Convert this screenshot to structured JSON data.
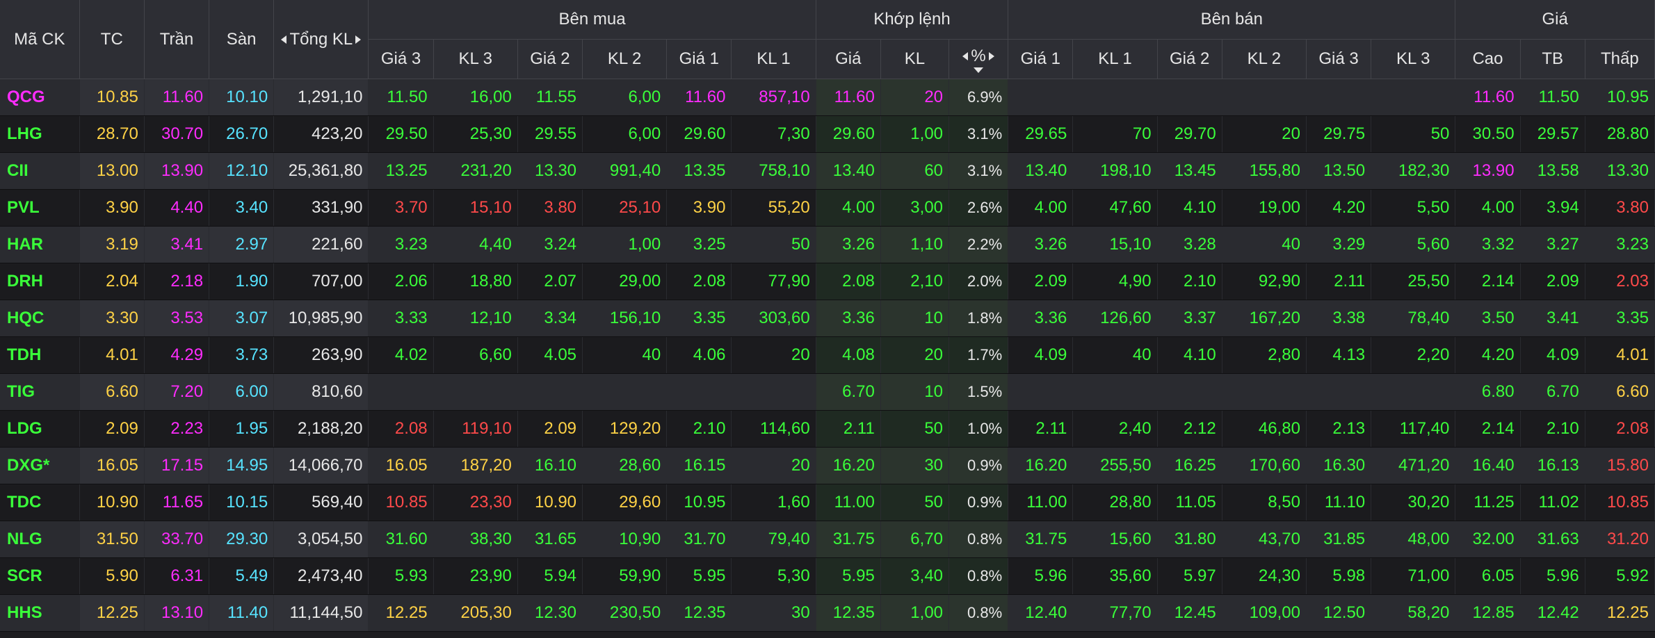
{
  "headers": {
    "symbol": "Mã CK",
    "ref": "TC",
    "ceiling": "Trần",
    "floor": "Sàn",
    "total_volume": "Tổng KL",
    "buy_group": "Bên mua",
    "match_group": "Khớp lệnh",
    "sell_group": "Bên bán",
    "price_group": "Giá",
    "buy_cols": [
      "Giá 3",
      "KL 3",
      "Giá 2",
      "KL 2",
      "Giá 1",
      "KL 1"
    ],
    "match_cols": [
      "Giá",
      "KL",
      "%"
    ],
    "sell_cols": [
      "Giá 1",
      "KL 1",
      "Giá 2",
      "KL 2",
      "Giá 3",
      "KL 3"
    ],
    "price_cols": [
      "Cao",
      "TB",
      "Thấp"
    ]
  },
  "colors": {
    "up": "#3aff3a",
    "ref": "#ffd246",
    "down": "#ff4a4a",
    "ceiling": "#ff2cff",
    "floor": "#57e3ff",
    "neutral": "#e8e8e8"
  },
  "rows": [
    {
      "sym": "QCG",
      "sc": "c",
      "tc": "10.85",
      "ceil": "11.60",
      "floor": "10.10",
      "vol": "1,291,10",
      "buy": [
        [
          "11.50",
          "g"
        ],
        [
          "16,00",
          "g"
        ],
        [
          "11.55",
          "g"
        ],
        [
          "6,00",
          "g"
        ],
        [
          "11.60",
          "c"
        ],
        [
          "857,10",
          "c"
        ]
      ],
      "match": [
        [
          "11.60",
          "c"
        ],
        [
          "20",
          "c"
        ]
      ],
      "pct": "6.9%",
      "sell": [
        [
          "",
          ""
        ],
        [
          "",
          ""
        ],
        [
          "",
          ""
        ],
        [
          "",
          ""
        ],
        [
          "",
          ""
        ],
        [
          "",
          ""
        ]
      ],
      "hl": [
        [
          "11.60",
          "c"
        ],
        [
          "11.50",
          "g"
        ],
        [
          "10.95",
          "g"
        ]
      ]
    },
    {
      "sym": "LHG",
      "sc": "g",
      "tc": "28.70",
      "ceil": "30.70",
      "floor": "26.70",
      "vol": "423,20",
      "buy": [
        [
          "29.50",
          "g"
        ],
        [
          "25,30",
          "g"
        ],
        [
          "29.55",
          "g"
        ],
        [
          "6,00",
          "g"
        ],
        [
          "29.60",
          "g"
        ],
        [
          "7,30",
          "g"
        ]
      ],
      "match": [
        [
          "29.60",
          "g"
        ],
        [
          "1,00",
          "g"
        ]
      ],
      "pct": "3.1%",
      "sell": [
        [
          "29.65",
          "g"
        ],
        [
          "70",
          "g"
        ],
        [
          "29.70",
          "g"
        ],
        [
          "20",
          "g"
        ],
        [
          "29.75",
          "g"
        ],
        [
          "50",
          "g"
        ]
      ],
      "hl": [
        [
          "30.50",
          "g"
        ],
        [
          "29.57",
          "g"
        ],
        [
          "28.80",
          "g"
        ]
      ]
    },
    {
      "sym": "CII",
      "sc": "g",
      "tc": "13.00",
      "ceil": "13.90",
      "floor": "12.10",
      "vol": "25,361,80",
      "buy": [
        [
          "13.25",
          "g"
        ],
        [
          "231,20",
          "g"
        ],
        [
          "13.30",
          "g"
        ],
        [
          "991,40",
          "g"
        ],
        [
          "13.35",
          "g"
        ],
        [
          "758,10",
          "g"
        ]
      ],
      "match": [
        [
          "13.40",
          "g"
        ],
        [
          "60",
          "g"
        ]
      ],
      "pct": "3.1%",
      "sell": [
        [
          "13.40",
          "g"
        ],
        [
          "198,10",
          "g"
        ],
        [
          "13.45",
          "g"
        ],
        [
          "155,80",
          "g"
        ],
        [
          "13.50",
          "g"
        ],
        [
          "182,30",
          "g"
        ]
      ],
      "hl": [
        [
          "13.90",
          "c"
        ],
        [
          "13.58",
          "g"
        ],
        [
          "13.30",
          "g"
        ]
      ]
    },
    {
      "sym": "PVL",
      "sc": "g",
      "tc": "3.90",
      "ceil": "4.40",
      "floor": "3.40",
      "vol": "331,90",
      "buy": [
        [
          "3.70",
          "r"
        ],
        [
          "15,10",
          "r"
        ],
        [
          "3.80",
          "r"
        ],
        [
          "25,10",
          "r"
        ],
        [
          "3.90",
          "y"
        ],
        [
          "55,20",
          "y"
        ]
      ],
      "match": [
        [
          "4.00",
          "g"
        ],
        [
          "3,00",
          "g"
        ]
      ],
      "pct": "2.6%",
      "sell": [
        [
          "4.00",
          "g"
        ],
        [
          "47,60",
          "g"
        ],
        [
          "4.10",
          "g"
        ],
        [
          "19,00",
          "g"
        ],
        [
          "4.20",
          "g"
        ],
        [
          "5,50",
          "g"
        ]
      ],
      "hl": [
        [
          "4.00",
          "g"
        ],
        [
          "3.94",
          "g"
        ],
        [
          "3.80",
          "r"
        ]
      ]
    },
    {
      "sym": "HAR",
      "sc": "g",
      "tc": "3.19",
      "ceil": "3.41",
      "floor": "2.97",
      "vol": "221,60",
      "buy": [
        [
          "3.23",
          "g"
        ],
        [
          "4,40",
          "g"
        ],
        [
          "3.24",
          "g"
        ],
        [
          "1,00",
          "g"
        ],
        [
          "3.25",
          "g"
        ],
        [
          "50",
          "g"
        ]
      ],
      "match": [
        [
          "3.26",
          "g"
        ],
        [
          "1,10",
          "g"
        ]
      ],
      "pct": "2.2%",
      "sell": [
        [
          "3.26",
          "g"
        ],
        [
          "15,10",
          "g"
        ],
        [
          "3.28",
          "g"
        ],
        [
          "40",
          "g"
        ],
        [
          "3.29",
          "g"
        ],
        [
          "5,60",
          "g"
        ]
      ],
      "hl": [
        [
          "3.32",
          "g"
        ],
        [
          "3.27",
          "g"
        ],
        [
          "3.23",
          "g"
        ]
      ]
    },
    {
      "sym": "DRH",
      "sc": "g",
      "tc": "2.04",
      "ceil": "2.18",
      "floor": "1.90",
      "vol": "707,00",
      "buy": [
        [
          "2.06",
          "g"
        ],
        [
          "18,80",
          "g"
        ],
        [
          "2.07",
          "g"
        ],
        [
          "29,00",
          "g"
        ],
        [
          "2.08",
          "g"
        ],
        [
          "77,90",
          "g"
        ]
      ],
      "match": [
        [
          "2.08",
          "g"
        ],
        [
          "2,10",
          "g"
        ]
      ],
      "pct": "2.0%",
      "sell": [
        [
          "2.09",
          "g"
        ],
        [
          "4,90",
          "g"
        ],
        [
          "2.10",
          "g"
        ],
        [
          "92,90",
          "g"
        ],
        [
          "2.11",
          "g"
        ],
        [
          "25,50",
          "g"
        ]
      ],
      "hl": [
        [
          "2.14",
          "g"
        ],
        [
          "2.09",
          "g"
        ],
        [
          "2.03",
          "r"
        ]
      ]
    },
    {
      "sym": "HQC",
      "sc": "g",
      "tc": "3.30",
      "ceil": "3.53",
      "floor": "3.07",
      "vol": "10,985,90",
      "buy": [
        [
          "3.33",
          "g"
        ],
        [
          "12,10",
          "g"
        ],
        [
          "3.34",
          "g"
        ],
        [
          "156,10",
          "g"
        ],
        [
          "3.35",
          "g"
        ],
        [
          "303,60",
          "g"
        ]
      ],
      "match": [
        [
          "3.36",
          "g"
        ],
        [
          "10",
          "g"
        ]
      ],
      "pct": "1.8%",
      "sell": [
        [
          "3.36",
          "g"
        ],
        [
          "126,60",
          "g"
        ],
        [
          "3.37",
          "g"
        ],
        [
          "167,20",
          "g"
        ],
        [
          "3.38",
          "g"
        ],
        [
          "78,40",
          "g"
        ]
      ],
      "hl": [
        [
          "3.50",
          "g"
        ],
        [
          "3.41",
          "g"
        ],
        [
          "3.35",
          "g"
        ]
      ]
    },
    {
      "sym": "TDH",
      "sc": "g",
      "tc": "4.01",
      "ceil": "4.29",
      "floor": "3.73",
      "vol": "263,90",
      "buy": [
        [
          "4.02",
          "g"
        ],
        [
          "6,60",
          "g"
        ],
        [
          "4.05",
          "g"
        ],
        [
          "40",
          "g"
        ],
        [
          "4.06",
          "g"
        ],
        [
          "20",
          "g"
        ]
      ],
      "match": [
        [
          "4.08",
          "g"
        ],
        [
          "20",
          "g"
        ]
      ],
      "pct": "1.7%",
      "sell": [
        [
          "4.09",
          "g"
        ],
        [
          "40",
          "g"
        ],
        [
          "4.10",
          "g"
        ],
        [
          "2,80",
          "g"
        ],
        [
          "4.13",
          "g"
        ],
        [
          "2,20",
          "g"
        ]
      ],
      "hl": [
        [
          "4.20",
          "g"
        ],
        [
          "4.09",
          "g"
        ],
        [
          "4.01",
          "y"
        ]
      ]
    },
    {
      "sym": "TIG",
      "sc": "g",
      "tc": "6.60",
      "ceil": "7.20",
      "floor": "6.00",
      "vol": "810,60",
      "buy": [
        [
          "",
          ""
        ],
        [
          "",
          ""
        ],
        [
          "",
          ""
        ],
        [
          "",
          ""
        ],
        [
          "",
          ""
        ],
        [
          "",
          ""
        ]
      ],
      "match": [
        [
          "6.70",
          "g"
        ],
        [
          "10",
          "g"
        ]
      ],
      "pct": "1.5%",
      "sell": [
        [
          "",
          ""
        ],
        [
          "",
          ""
        ],
        [
          "",
          ""
        ],
        [
          "",
          ""
        ],
        [
          "",
          ""
        ],
        [
          "",
          ""
        ]
      ],
      "hl": [
        [
          "6.80",
          "g"
        ],
        [
          "6.70",
          "g"
        ],
        [
          "6.60",
          "y"
        ]
      ]
    },
    {
      "sym": "LDG",
      "sc": "g",
      "tc": "2.09",
      "ceil": "2.23",
      "floor": "1.95",
      "vol": "2,188,20",
      "buy": [
        [
          "2.08",
          "r"
        ],
        [
          "119,10",
          "r"
        ],
        [
          "2.09",
          "y"
        ],
        [
          "129,20",
          "y"
        ],
        [
          "2.10",
          "g"
        ],
        [
          "114,60",
          "g"
        ]
      ],
      "match": [
        [
          "2.11",
          "g"
        ],
        [
          "50",
          "g"
        ]
      ],
      "pct": "1.0%",
      "sell": [
        [
          "2.11",
          "g"
        ],
        [
          "2,40",
          "g"
        ],
        [
          "2.12",
          "g"
        ],
        [
          "46,80",
          "g"
        ],
        [
          "2.13",
          "g"
        ],
        [
          "117,40",
          "g"
        ]
      ],
      "hl": [
        [
          "2.14",
          "g"
        ],
        [
          "2.10",
          "g"
        ],
        [
          "2.08",
          "r"
        ]
      ]
    },
    {
      "sym": "DXG*",
      "sc": "g",
      "tc": "16.05",
      "ceil": "17.15",
      "floor": "14.95",
      "vol": "14,066,70",
      "buy": [
        [
          "16.05",
          "y"
        ],
        [
          "187,20",
          "y"
        ],
        [
          "16.10",
          "g"
        ],
        [
          "28,60",
          "g"
        ],
        [
          "16.15",
          "g"
        ],
        [
          "20",
          "g"
        ]
      ],
      "match": [
        [
          "16.20",
          "g"
        ],
        [
          "30",
          "g"
        ]
      ],
      "pct": "0.9%",
      "sell": [
        [
          "16.20",
          "g"
        ],
        [
          "255,50",
          "g"
        ],
        [
          "16.25",
          "g"
        ],
        [
          "170,60",
          "g"
        ],
        [
          "16.30",
          "g"
        ],
        [
          "471,20",
          "g"
        ]
      ],
      "hl": [
        [
          "16.40",
          "g"
        ],
        [
          "16.13",
          "g"
        ],
        [
          "15.80",
          "r"
        ]
      ]
    },
    {
      "sym": "TDC",
      "sc": "g",
      "tc": "10.90",
      "ceil": "11.65",
      "floor": "10.15",
      "vol": "569,40",
      "buy": [
        [
          "10.85",
          "r"
        ],
        [
          "23,30",
          "r"
        ],
        [
          "10.90",
          "y"
        ],
        [
          "29,60",
          "y"
        ],
        [
          "10.95",
          "g"
        ],
        [
          "1,60",
          "g"
        ]
      ],
      "match": [
        [
          "11.00",
          "g"
        ],
        [
          "50",
          "g"
        ]
      ],
      "pct": "0.9%",
      "sell": [
        [
          "11.00",
          "g"
        ],
        [
          "28,80",
          "g"
        ],
        [
          "11.05",
          "g"
        ],
        [
          "8,50",
          "g"
        ],
        [
          "11.10",
          "g"
        ],
        [
          "30,20",
          "g"
        ]
      ],
      "hl": [
        [
          "11.25",
          "g"
        ],
        [
          "11.02",
          "g"
        ],
        [
          "10.85",
          "r"
        ]
      ]
    },
    {
      "sym": "NLG",
      "sc": "g",
      "tc": "31.50",
      "ceil": "33.70",
      "floor": "29.30",
      "vol": "3,054,50",
      "buy": [
        [
          "31.60",
          "g"
        ],
        [
          "38,30",
          "g"
        ],
        [
          "31.65",
          "g"
        ],
        [
          "10,90",
          "g"
        ],
        [
          "31.70",
          "g"
        ],
        [
          "79,40",
          "g"
        ]
      ],
      "match": [
        [
          "31.75",
          "g"
        ],
        [
          "6,70",
          "g"
        ]
      ],
      "pct": "0.8%",
      "sell": [
        [
          "31.75",
          "g"
        ],
        [
          "15,60",
          "g"
        ],
        [
          "31.80",
          "g"
        ],
        [
          "43,70",
          "g"
        ],
        [
          "31.85",
          "g"
        ],
        [
          "48,00",
          "g"
        ]
      ],
      "hl": [
        [
          "32.00",
          "g"
        ],
        [
          "31.63",
          "g"
        ],
        [
          "31.20",
          "r"
        ]
      ]
    },
    {
      "sym": "SCR",
      "sc": "g",
      "tc": "5.90",
      "ceil": "6.31",
      "floor": "5.49",
      "vol": "2,473,40",
      "buy": [
        [
          "5.93",
          "g"
        ],
        [
          "23,90",
          "g"
        ],
        [
          "5.94",
          "g"
        ],
        [
          "59,90",
          "g"
        ],
        [
          "5.95",
          "g"
        ],
        [
          "5,30",
          "g"
        ]
      ],
      "match": [
        [
          "5.95",
          "g"
        ],
        [
          "3,40",
          "g"
        ]
      ],
      "pct": "0.8%",
      "sell": [
        [
          "5.96",
          "g"
        ],
        [
          "35,60",
          "g"
        ],
        [
          "5.97",
          "g"
        ],
        [
          "24,30",
          "g"
        ],
        [
          "5.98",
          "g"
        ],
        [
          "71,00",
          "g"
        ]
      ],
      "hl": [
        [
          "6.05",
          "g"
        ],
        [
          "5.96",
          "g"
        ],
        [
          "5.92",
          "g"
        ]
      ]
    },
    {
      "sym": "HHS",
      "sc": "g",
      "tc": "12.25",
      "ceil": "13.10",
      "floor": "11.40",
      "vol": "11,144,50",
      "buy": [
        [
          "12.25",
          "y"
        ],
        [
          "205,30",
          "y"
        ],
        [
          "12.30",
          "g"
        ],
        [
          "230,50",
          "g"
        ],
        [
          "12.35",
          "g"
        ],
        [
          "30",
          "g"
        ]
      ],
      "match": [
        [
          "12.35",
          "g"
        ],
        [
          "1,00",
          "g"
        ]
      ],
      "pct": "0.8%",
      "sell": [
        [
          "12.40",
          "g"
        ],
        [
          "77,70",
          "g"
        ],
        [
          "12.45",
          "g"
        ],
        [
          "109,00",
          "g"
        ],
        [
          "12.50",
          "g"
        ],
        [
          "58,20",
          "g"
        ]
      ],
      "hl": [
        [
          "12.85",
          "g"
        ],
        [
          "12.42",
          "g"
        ],
        [
          "12.25",
          "y"
        ]
      ]
    }
  ]
}
